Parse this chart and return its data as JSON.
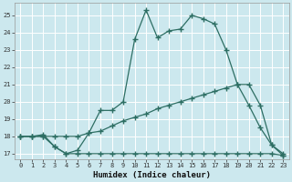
{
  "xlabel": "Humidex (Indice chaleur)",
  "bg_color": "#cce8ee",
  "grid_color": "#ffffff",
  "line_color": "#2d6e63",
  "xlim": [
    -0.5,
    23.5
  ],
  "ylim": [
    16.7,
    25.7
  ],
  "yticks": [
    17,
    18,
    19,
    20,
    21,
    22,
    23,
    24,
    25
  ],
  "xticks": [
    0,
    1,
    2,
    3,
    4,
    5,
    6,
    7,
    8,
    9,
    10,
    11,
    12,
    13,
    14,
    15,
    16,
    17,
    18,
    19,
    20,
    21,
    22,
    23
  ],
  "series1_x": [
    0,
    1,
    2,
    3,
    4,
    5,
    6,
    7,
    8,
    9,
    10,
    11,
    12,
    13,
    14,
    15,
    16,
    17,
    18,
    19,
    20,
    21,
    22,
    23
  ],
  "series1_y": [
    18.0,
    18.0,
    18.1,
    17.4,
    17.0,
    17.2,
    18.2,
    19.5,
    19.5,
    20.0,
    23.6,
    25.3,
    23.7,
    24.1,
    24.2,
    25.0,
    24.8,
    24.5,
    23.0,
    21.0,
    21.0,
    19.8,
    17.5,
    16.9
  ],
  "series2_x": [
    0,
    1,
    2,
    3,
    4,
    5,
    6,
    7,
    8,
    9,
    10,
    11,
    12,
    13,
    14,
    15,
    16,
    17,
    18,
    19,
    20,
    21,
    22,
    23
  ],
  "series2_y": [
    18.0,
    18.0,
    18.0,
    18.0,
    18.0,
    18.0,
    18.2,
    18.3,
    18.6,
    18.9,
    19.1,
    19.3,
    19.6,
    19.8,
    20.0,
    20.2,
    20.4,
    20.6,
    20.8,
    21.0,
    19.8,
    18.5,
    17.5,
    17.0
  ],
  "series3_x": [
    0,
    1,
    2,
    3,
    4,
    5,
    6,
    7,
    8,
    9,
    10,
    11,
    12,
    13,
    14,
    15,
    16,
    17,
    18,
    19,
    20,
    21,
    22,
    23
  ],
  "series3_y": [
    18.0,
    18.0,
    18.0,
    17.4,
    17.0,
    17.0,
    17.0,
    17.0,
    17.0,
    17.0,
    17.0,
    17.0,
    17.0,
    17.0,
    17.0,
    17.0,
    17.0,
    17.0,
    17.0,
    17.0,
    17.0,
    17.0,
    17.0,
    16.9
  ]
}
